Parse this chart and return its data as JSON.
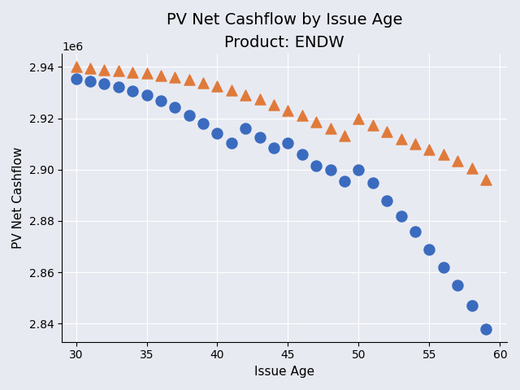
{
  "title": "PV Net Cashflow by Issue Age\nProduct: ENDW",
  "xlabel": "Issue Age",
  "ylabel": "PV Net Cashflow",
  "background_color": "#e8eaf2",
  "plot_bg_color": "#e8eaf2",
  "blue_color": "#3a6bbf",
  "orange_color": "#e07a3a",
  "ages": [
    30,
    31,
    32,
    33,
    34,
    35,
    36,
    37,
    38,
    39,
    40,
    41,
    42,
    43,
    44,
    45,
    46,
    47,
    48,
    49,
    50,
    51,
    52,
    53,
    54,
    55,
    56,
    57,
    58,
    59
  ],
  "blue_values": [
    2935500,
    2934500,
    2933500,
    2932200,
    2930800,
    2929000,
    2926800,
    2924200,
    2921200,
    2918000,
    2914300,
    2910500,
    2916000,
    2912500,
    2908500,
    2910500,
    2906000,
    2901500,
    2900000,
    2895500,
    2900000,
    2895000,
    2888000,
    2882000,
    2876000,
    2869000,
    2862000,
    2855000,
    2847000,
    2838000
  ],
  "orange_values": [
    2940000,
    2939500,
    2939000,
    2938500,
    2938000,
    2937500,
    2936800,
    2936000,
    2935000,
    2933800,
    2932400,
    2930900,
    2929200,
    2927400,
    2925400,
    2923200,
    2921000,
    2918500,
    2916000,
    2913200,
    2920000,
    2917500,
    2914800,
    2912000,
    2910000,
    2908000,
    2906000,
    2903500,
    2900500,
    2896000
  ],
  "xlim": [
    29.0,
    60.5
  ],
  "ylim": [
    2820000,
    2950000
  ],
  "xticks": [
    30,
    35,
    40,
    45,
    50,
    55,
    60
  ],
  "title_fontsize": 14,
  "subtitle_fontsize": 11,
  "label_fontsize": 11,
  "tick_fontsize": 10,
  "marker_size": 7
}
